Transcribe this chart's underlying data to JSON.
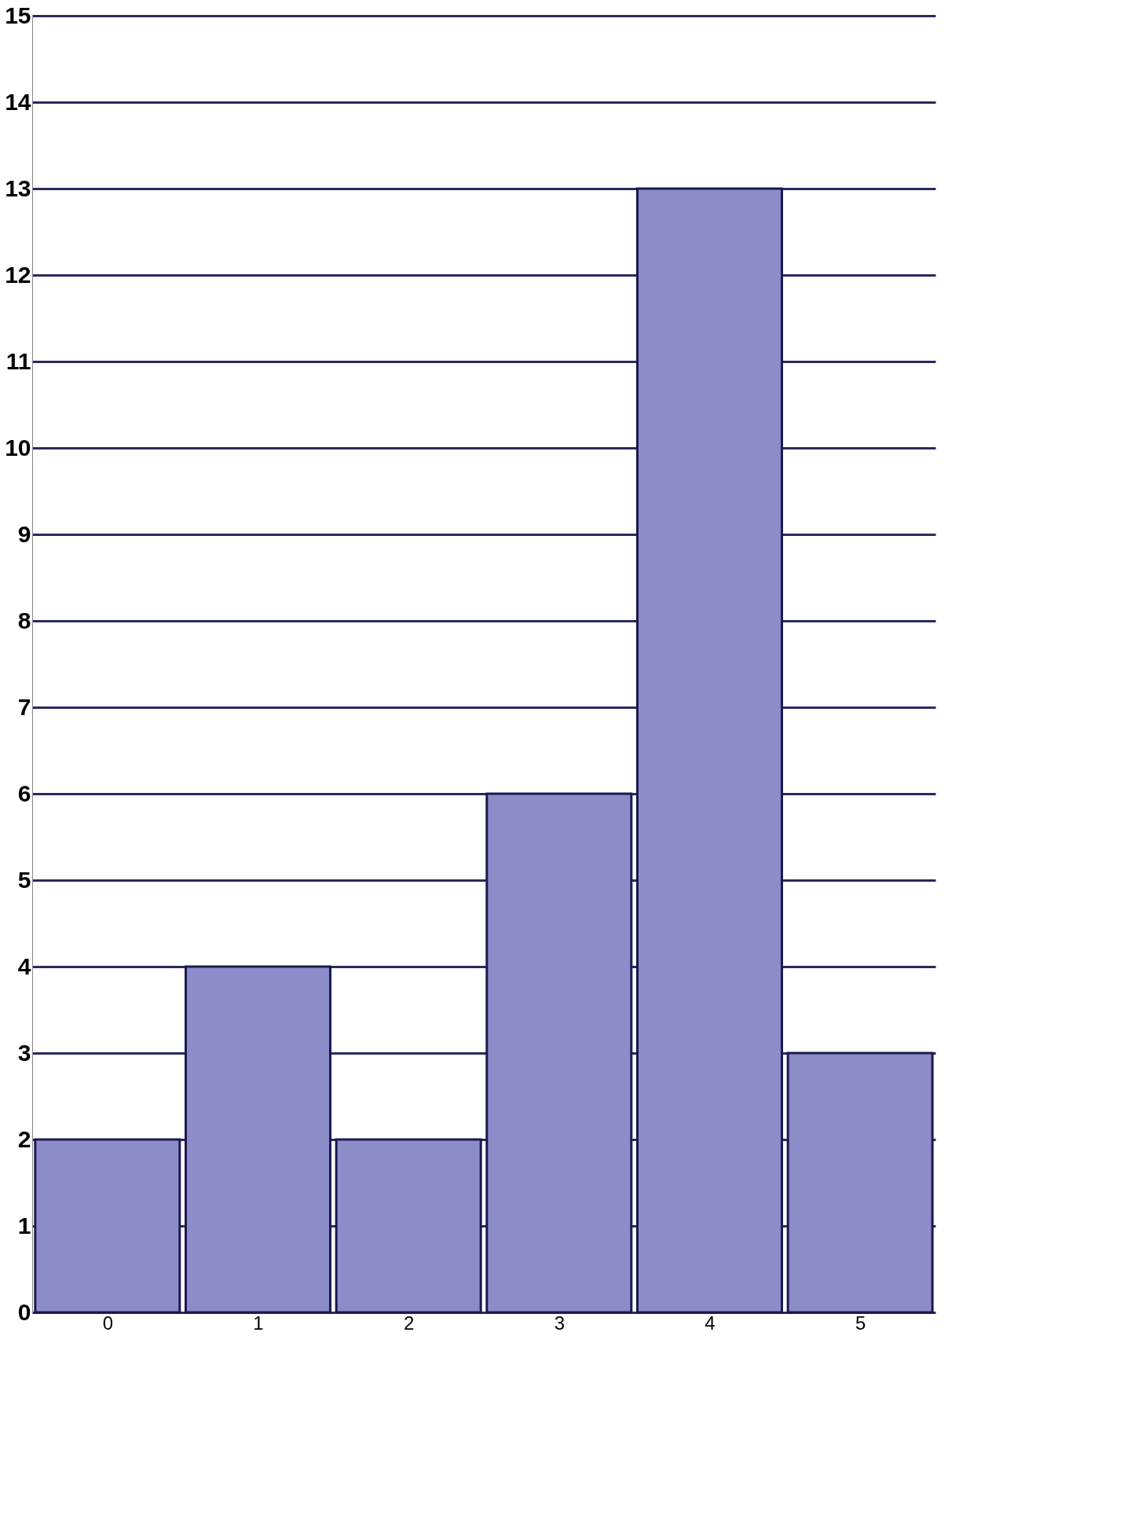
{
  "chart_data": {
    "type": "bar",
    "categories": [
      "0",
      "1",
      "2",
      "3",
      "4",
      "5"
    ],
    "values": [
      2,
      4,
      2,
      6,
      13,
      3
    ],
    "color": "#8c8cc8",
    "ylim": [
      0,
      15
    ],
    "yticks": [
      0,
      1,
      2,
      3,
      4,
      5,
      6,
      7,
      8,
      9,
      10,
      11,
      12,
      13,
      14,
      15
    ],
    "grid": "y"
  }
}
